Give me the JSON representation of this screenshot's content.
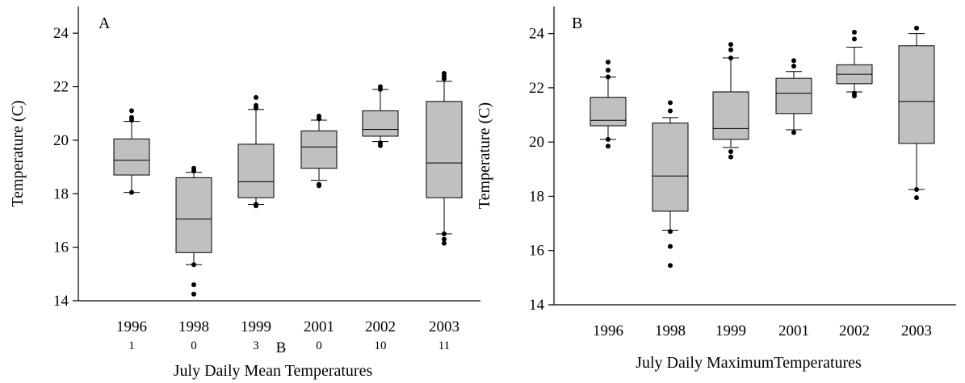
{
  "chart_data": [
    {
      "type": "box",
      "panel_label": "A",
      "title": "",
      "xlabel": "July  Daily Mean Temperatures",
      "ylabel": "Temperature (C)",
      "ylim": [
        14,
        25
      ],
      "yticks": [
        14,
        16,
        18,
        20,
        22,
        24
      ],
      "categories": [
        "1996",
        "1998",
        "1999",
        "2001",
        "2002",
        "2003"
      ],
      "counts": [
        "1",
        "0",
        "3",
        "0",
        "10",
        "11"
      ],
      "extra_label": "B",
      "box_color": "#c0c0c0",
      "boxes": [
        {
          "category": "1996",
          "q1": 18.7,
          "median": 19.25,
          "q3": 20.05,
          "whisker_low": 18.05,
          "whisker_high": 20.7,
          "outliers": [
            18.05,
            20.75,
            20.85,
            21.1
          ]
        },
        {
          "category": "1998",
          "q1": 15.8,
          "median": 17.05,
          "q3": 18.6,
          "whisker_low": 15.35,
          "whisker_high": 18.8,
          "outliers": [
            15.35,
            14.6,
            14.25,
            18.85,
            18.95
          ]
        },
        {
          "category": "1999",
          "q1": 17.85,
          "median": 18.45,
          "q3": 19.85,
          "whisker_low": 17.6,
          "whisker_high": 21.15,
          "outliers": [
            17.55,
            17.6,
            21.2,
            21.3,
            21.6
          ]
        },
        {
          "category": "2001",
          "q1": 18.95,
          "median": 19.75,
          "q3": 20.35,
          "whisker_low": 18.5,
          "whisker_high": 20.75,
          "outliers": [
            18.35,
            18.3,
            20.8,
            20.9
          ]
        },
        {
          "category": "2002",
          "q1": 20.15,
          "median": 20.4,
          "q3": 21.1,
          "whisker_low": 19.95,
          "whisker_high": 21.9,
          "outliers": [
            19.8,
            19.9,
            21.9,
            22.0
          ]
        },
        {
          "category": "2003",
          "q1": 17.85,
          "median": 19.15,
          "q3": 21.45,
          "whisker_low": 16.5,
          "whisker_high": 22.2,
          "outliers": [
            16.5,
            16.3,
            16.15,
            22.3,
            22.4,
            22.5
          ]
        }
      ]
    },
    {
      "type": "box",
      "panel_label": "B",
      "title": "",
      "xlabel": "July  Daily MaximumTemperatures",
      "ylabel": "Temperature (C)",
      "ylim": [
        14,
        25
      ],
      "yticks": [
        14,
        16,
        18,
        20,
        22,
        24
      ],
      "categories": [
        "1996",
        "1998",
        "1999",
        "2001",
        "2002",
        "2003"
      ],
      "box_color": "#c0c0c0",
      "boxes": [
        {
          "category": "1996",
          "q1": 20.6,
          "median": 20.8,
          "q3": 21.65,
          "whisker_low": 20.1,
          "whisker_high": 22.4,
          "outliers": [
            20.1,
            19.85,
            22.4,
            22.65,
            22.95
          ]
        },
        {
          "category": "1998",
          "q1": 17.45,
          "median": 18.75,
          "q3": 20.7,
          "whisker_low": 16.75,
          "whisker_high": 20.9,
          "outliers": [
            16.7,
            16.15,
            15.45,
            21.15,
            21.45
          ]
        },
        {
          "category": "1999",
          "q1": 20.1,
          "median": 20.5,
          "q3": 21.85,
          "whisker_low": 19.8,
          "whisker_high": 23.1,
          "outliers": [
            19.65,
            19.45,
            23.1,
            23.4,
            23.6
          ]
        },
        {
          "category": "2001",
          "q1": 21.05,
          "median": 21.8,
          "q3": 22.35,
          "whisker_low": 20.45,
          "whisker_high": 22.6,
          "outliers": [
            20.35,
            22.8,
            23.0
          ]
        },
        {
          "category": "2002",
          "q1": 22.15,
          "median": 22.5,
          "q3": 22.85,
          "whisker_low": 21.85,
          "whisker_high": 23.5,
          "outliers": [
            21.8,
            21.7,
            23.8,
            24.05
          ]
        },
        {
          "category": "2003",
          "q1": 19.95,
          "median": 21.5,
          "q3": 23.55,
          "whisker_low": 18.25,
          "whisker_high": 24.0,
          "outliers": [
            18.25,
            17.95,
            24.2
          ]
        }
      ]
    }
  ]
}
